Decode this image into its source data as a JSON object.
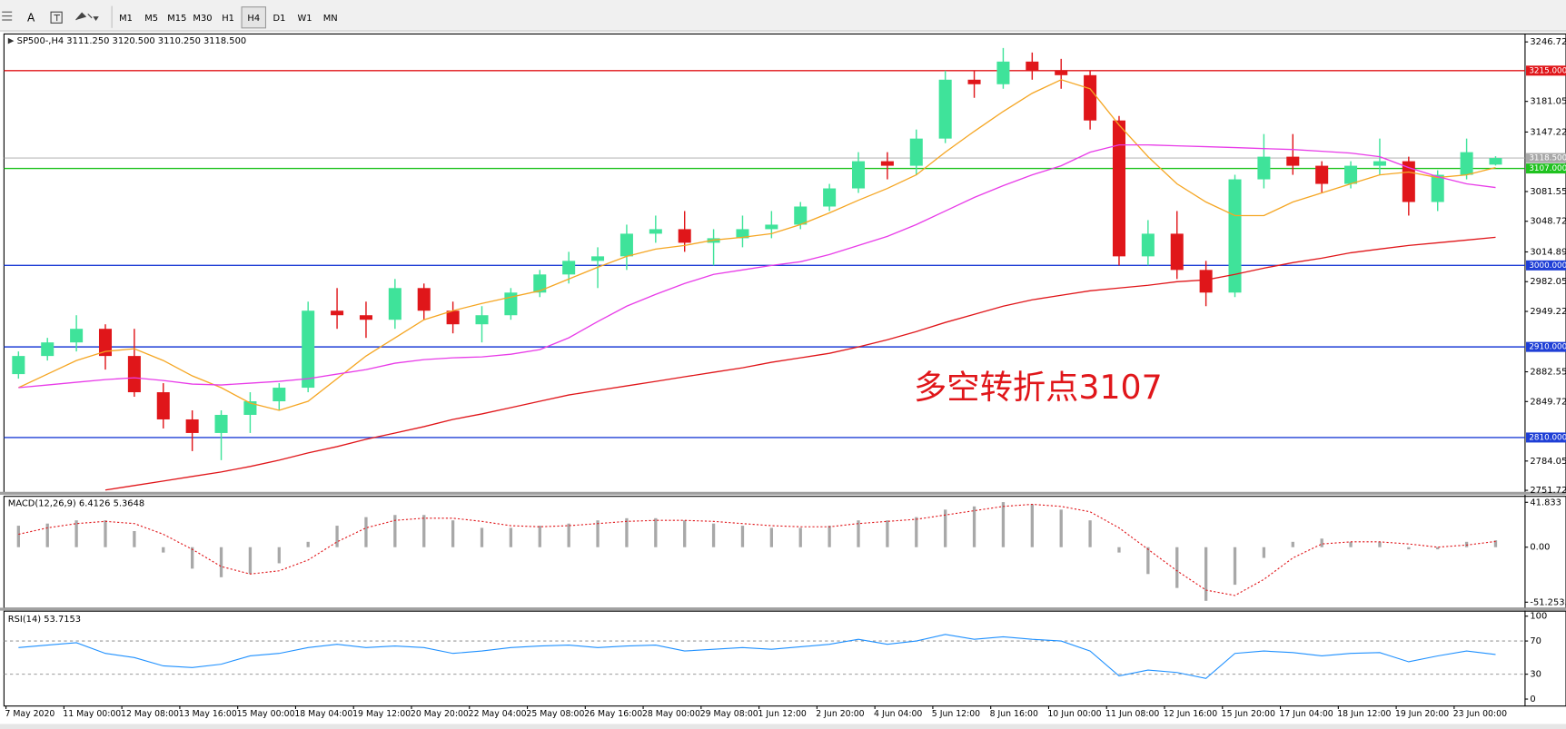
{
  "toolbar": {
    "tools": [
      "A"
    ],
    "timeframes": [
      "M1",
      "M5",
      "M15",
      "M30",
      "H1",
      "H4",
      "D1",
      "W1",
      "MN"
    ],
    "active": "H4"
  },
  "chart_data": [
    {
      "type": "candlestick",
      "title": "SP500-,H4  3111.250 3120.500 3110.250 3118.500",
      "annotation": "多空转折点3107",
      "annotation_color": "#e0161a",
      "categories": [
        "7 May 2020",
        null,
        "11 May 00:00",
        null,
        "12 May 08:00",
        null,
        "13 May 16:00",
        null,
        "15 May 00:00",
        null,
        "18 May 04:00",
        null,
        "19 May 12:00",
        null,
        "20 May 20:00",
        null,
        "22 May 04:00",
        null,
        "25 May 08:00",
        null,
        "26 May 16:00",
        null,
        "28 May 00:00",
        null,
        "29 May 08:00",
        null,
        "1 Jun 12:00",
        null,
        "2 Jun 20:00",
        null,
        "4 Jun 04:00",
        null,
        "5 Jun 12:00",
        null,
        "8 Jun 16:00",
        null,
        "10 Jun 00:00",
        null,
        "11 Jun 08:00",
        null,
        "12 Jun 16:00",
        null,
        "15 Jun 20:00",
        null,
        "17 Jun 04:00",
        null,
        "18 Jun 12:00",
        null,
        "19 Jun 20:00",
        null,
        "23 Jun 00:00",
        null
      ],
      "open": [
        2880,
        2900,
        2915,
        2930,
        2900,
        2860,
        2830,
        2815,
        2835,
        2850,
        2865,
        2950,
        2945,
        2940,
        2975,
        2950,
        2935,
        2945,
        2970,
        2990,
        3005,
        3010,
        3035,
        3040,
        3025,
        3030,
        3040,
        3045,
        3065,
        3085,
        3115,
        3110,
        3140,
        3205,
        3200,
        3225,
        3215,
        3210,
        3160,
        3010,
        3035,
        2995,
        2970,
        3095,
        3120,
        3110,
        3090,
        3110,
        3115,
        3070,
        3100,
        3111.25
      ],
      "high": [
        2905,
        2920,
        2945,
        2935,
        2930,
        2870,
        2840,
        2840,
        2860,
        2870,
        2960,
        2975,
        2960,
        2985,
        2980,
        2960,
        2955,
        2975,
        2995,
        3015,
        3020,
        3045,
        3055,
        3060,
        3040,
        3055,
        3060,
        3070,
        3090,
        3125,
        3125,
        3150,
        3215,
        3215,
        3240,
        3235,
        3228,
        3215,
        3165,
        3050,
        3060,
        3005,
        3100,
        3145,
        3145,
        3115,
        3115,
        3140,
        3120,
        3105,
        3140,
        3120.5
      ],
      "low": [
        2875,
        2895,
        2905,
        2885,
        2855,
        2820,
        2795,
        2785,
        2815,
        2840,
        2860,
        2930,
        2920,
        2930,
        2940,
        2925,
        2915,
        2940,
        2965,
        2980,
        2975,
        2995,
        3025,
        3015,
        3000,
        3020,
        3030,
        3040,
        3060,
        3080,
        3095,
        3100,
        3135,
        3185,
        3195,
        3205,
        3195,
        3150,
        3000,
        3000,
        2985,
        2955,
        2965,
        3085,
        3100,
        3080,
        3085,
        3100,
        3055,
        3060,
        3095,
        3110.25
      ],
      "close": [
        2900,
        2915,
        2930,
        2900,
        2860,
        2830,
        2815,
        2835,
        2850,
        2865,
        2950,
        2945,
        2940,
        2975,
        2950,
        2935,
        2945,
        2970,
        2990,
        3005,
        3010,
        3035,
        3040,
        3025,
        3030,
        3040,
        3045,
        3065,
        3085,
        3115,
        3110,
        3140,
        3205,
        3200,
        3225,
        3215,
        3210,
        3160,
        3010,
        3035,
        2995,
        2970,
        3095,
        3120,
        3110,
        3090,
        3110,
        3115,
        3070,
        3100,
        3125,
        3118.5
      ],
      "up_color": "#3fe39a",
      "down_color": "#e0161a",
      "lines": [
        {
          "color": "#f5a623",
          "values": [
            2865,
            2880,
            2895,
            2905,
            2908,
            2895,
            2878,
            2865,
            2848,
            2840,
            2850,
            2875,
            2900,
            2920,
            2940,
            2950,
            2958,
            2965,
            2972,
            2985,
            2998,
            3010,
            3018,
            3022,
            3028,
            3031,
            3035,
            3045,
            3058,
            3072,
            3085,
            3100,
            3125,
            3148,
            3170,
            3190,
            3205,
            3195,
            3155,
            3120,
            3090,
            3070,
            3055,
            3055,
            3070,
            3080,
            3090,
            3100,
            3103,
            3097,
            3100,
            3108
          ]
        },
        {
          "color": "#e83ce8",
          "values": [
            2865,
            2868,
            2871,
            2874,
            2876,
            2873,
            2869,
            2868,
            2870,
            2872,
            2875,
            2880,
            2885,
            2892,
            2896,
            2898,
            2899,
            2902,
            2907,
            2920,
            2938,
            2955,
            2968,
            2980,
            2990,
            2995,
            3000,
            3004,
            3012,
            3022,
            3032,
            3045,
            3060,
            3075,
            3088,
            3100,
            3110,
            3125,
            3133,
            3133,
            3132,
            3131,
            3130,
            3129,
            3128,
            3126,
            3124,
            3120,
            3108,
            3098,
            3090,
            3086
          ]
        },
        {
          "color": "#e0161a",
          "values": [
            null,
            null,
            null,
            2752,
            2757,
            2762,
            2767,
            2772,
            2778,
            2785,
            2793,
            2800,
            2808,
            2815,
            2822,
            2830,
            2836,
            2843,
            2850,
            2857,
            2862,
            2867,
            2872,
            2877,
            2882,
            2887,
            2893,
            2898,
            2903,
            2910,
            2918,
            2927,
            2937,
            2946,
            2955,
            2962,
            2967,
            2972,
            2975,
            2978,
            2982,
            2984,
            2990,
            2997,
            3003,
            3008,
            3014,
            3018,
            3022,
            3025,
            3028,
            3031
          ]
        }
      ],
      "levels": [
        {
          "value": 3215,
          "label": "3215.000",
          "color": "#e0161a"
        },
        {
          "value": 3118.5,
          "label": "3118.500",
          "color": "#a9a9a9"
        },
        {
          "value": 3107,
          "label": "3107.000",
          "color": "#1fc21f"
        },
        {
          "value": 3000,
          "label": "3000.000",
          "color": "#1f3fd6"
        },
        {
          "value": 2910,
          "label": "2910.000",
          "color": "#1f3fd6"
        },
        {
          "value": 2810,
          "label": "2810.000",
          "color": "#1f3fd6"
        }
      ],
      "ylim": [
        2749.5,
        3255.5
      ],
      "yticks": [
        3246.725,
        3181.055,
        3147.225,
        3081.555,
        {
          "value": 3048.72,
          "label": "3048.720"
        },
        {
          "value": 3014.89,
          "label": "3014.890"
        },
        2982.055,
        {
          "value": 2949.22,
          "label": "2949.220"
        },
        2882.555,
        {
          "value": 2849.72,
          "label": "2849.720"
        },
        {
          "value": 2784.05,
          "label": "2784.050"
        },
        2751.725
      ]
    },
    {
      "type": "macd",
      "label": "MACD(12,26,9) 6.4126 5.3648",
      "histogram": [
        20,
        22,
        25,
        25,
        15,
        -5,
        -20,
        -28,
        -25,
        -15,
        5,
        20,
        28,
        30,
        30,
        25,
        18,
        18,
        20,
        22,
        25,
        27,
        27,
        25,
        22,
        20,
        18,
        18,
        20,
        25,
        25,
        28,
        35,
        38,
        42,
        40,
        35,
        25,
        -5,
        -25,
        -38,
        -50,
        -35,
        -10,
        5,
        8,
        5,
        5,
        -2,
        -2,
        5,
        6.4126
      ],
      "signal": [
        12,
        18,
        22,
        24,
        22,
        12,
        -2,
        -18,
        -25,
        -22,
        -12,
        5,
        18,
        25,
        27,
        27,
        24,
        20,
        19,
        20,
        22,
        24,
        25,
        25,
        24,
        22,
        20,
        19,
        19,
        22,
        24,
        26,
        30,
        34,
        38,
        40,
        38,
        33,
        18,
        -2,
        -22,
        -40,
        -45,
        -30,
        -10,
        3,
        5,
        5,
        3,
        0,
        2,
        5.3648
      ],
      "histogram_color": "#a8a8a8",
      "signal_color": "#e0161a",
      "ylim": [
        -55.9,
        47.4
      ],
      "yticks": [
        41.833,
        {
          "value": 0,
          "label": "0.00"
        },
        -51.2535
      ]
    },
    {
      "type": "rsi",
      "label": "RSI(14) 53.7153",
      "values": [
        62,
        65,
        68,
        55,
        50,
        40,
        38,
        42,
        52,
        55,
        62,
        66,
        62,
        64,
        62,
        55,
        58,
        62,
        64,
        65,
        62,
        64,
        65,
        58,
        60,
        62,
        60,
        63,
        66,
        72,
        66,
        70,
        78,
        72,
        75,
        72,
        70,
        58,
        28,
        35,
        32,
        25,
        55,
        58,
        56,
        52,
        55,
        56,
        45,
        52,
        58,
        53.7153
      ],
      "color": "#1e90ff",
      "ylim": [
        -7.2,
        106
      ],
      "yticks": [
        0,
        30,
        70,
        100
      ],
      "levels": [
        30,
        70
      ]
    }
  ]
}
